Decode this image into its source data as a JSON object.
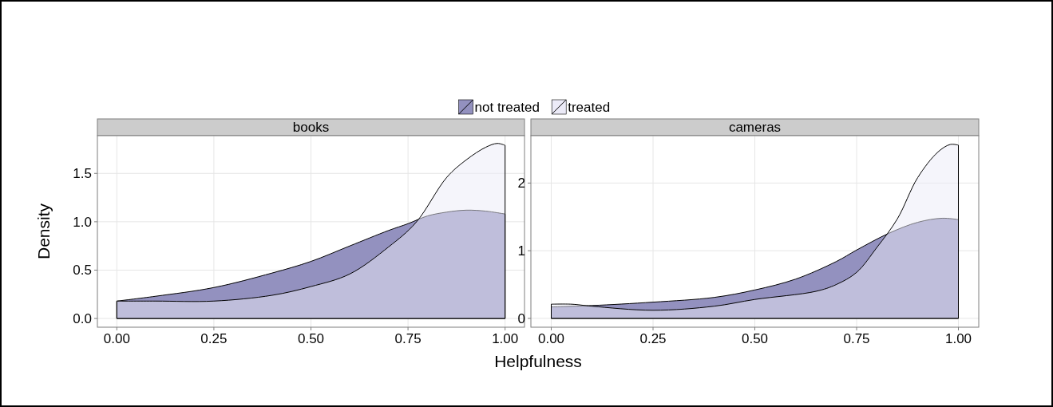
{
  "chart_data": [
    {
      "type": "area",
      "title": "books",
      "xlabel": "Helpfulness",
      "ylabel": "Density",
      "legend": "top",
      "grid": true,
      "xlim": [
        -0.05,
        1.05
      ],
      "ylim": [
        -0.09,
        1.89
      ],
      "xticks": [
        {
          "value": 0,
          "label": "0.00"
        },
        {
          "value": 0.25,
          "label": "0.25"
        },
        {
          "value": 0.5,
          "label": "0.50"
        },
        {
          "value": 0.75,
          "label": "0.75"
        },
        {
          "value": 1,
          "label": "1.00"
        }
      ],
      "yticks": [
        {
          "value": 0,
          "label": "0.0"
        },
        {
          "value": 0.5,
          "label": "0.5"
        },
        {
          "value": 1,
          "label": "1.0"
        },
        {
          "value": 1.5,
          "label": "1.5"
        }
      ],
      "series": [
        {
          "name": "not treated",
          "color": "#9391bf",
          "x": [
            0,
            0.1,
            0.25,
            0.4,
            0.5,
            0.6,
            0.7,
            0.75,
            0.8,
            0.85,
            0.9,
            0.95,
            1
          ],
          "values": [
            0.18,
            0.23,
            0.32,
            0.47,
            0.59,
            0.75,
            0.91,
            0.98,
            1.06,
            1.1,
            1.12,
            1.11,
            1.08
          ]
        },
        {
          "name": "treated",
          "color": "#ecebf8",
          "x": [
            0,
            0.1,
            0.25,
            0.4,
            0.5,
            0.6,
            0.7,
            0.77,
            0.85,
            0.9,
            0.95,
            0.98,
            1
          ],
          "values": [
            0.18,
            0.18,
            0.18,
            0.24,
            0.33,
            0.46,
            0.74,
            0.99,
            1.46,
            1.64,
            1.77,
            1.81,
            1.79
          ]
        }
      ]
    },
    {
      "type": "area",
      "title": "cameras",
      "legend": false,
      "grid": true,
      "xlim": [
        -0.05,
        1.05
      ],
      "ylim": [
        -0.13,
        2.7
      ],
      "xticks": [
        {
          "value": 0,
          "label": "0.00"
        },
        {
          "value": 0.25,
          "label": "0.25"
        },
        {
          "value": 0.5,
          "label": "0.50"
        },
        {
          "value": 0.75,
          "label": "0.75"
        },
        {
          "value": 1,
          "label": "1.00"
        }
      ],
      "yticks": [
        0,
        1,
        2
      ],
      "series": [
        {
          "color": "#9391bf",
          "x": [
            0,
            0.1,
            0.25,
            0.4,
            0.5,
            0.6,
            0.7,
            0.75,
            0.83,
            0.9,
            0.96,
            1
          ],
          "values": [
            0.17,
            0.19,
            0.24,
            0.31,
            0.42,
            0.58,
            0.84,
            1.01,
            1.26,
            1.42,
            1.48,
            1.46
          ]
        },
        {
          "color": "#ecebf8",
          "x": [
            0,
            0.05,
            0.1,
            0.25,
            0.4,
            0.5,
            0.65,
            0.7,
            0.75,
            0.8,
            0.85,
            0.9,
            0.95,
            0.98,
            1
          ],
          "values": [
            0.21,
            0.21,
            0.18,
            0.12,
            0.18,
            0.28,
            0.4,
            0.5,
            0.68,
            1.05,
            1.47,
            2.08,
            2.46,
            2.57,
            2.56
          ]
        }
      ]
    }
  ]
}
